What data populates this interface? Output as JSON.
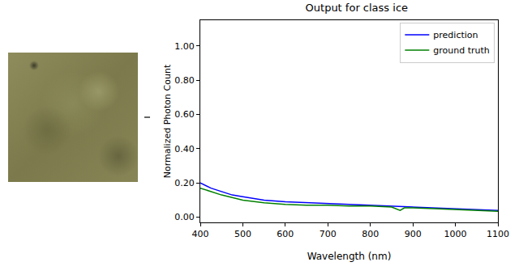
{
  "chart_data": {
    "type": "line",
    "title": "Output for class ice",
    "x_label": "Wavelength (nm)",
    "y_label": "Normalized Photon Count",
    "x": [
      400,
      425,
      450,
      475,
      500,
      550,
      600,
      650,
      700,
      750,
      800,
      850,
      870,
      880,
      900,
      950,
      1000,
      1050,
      1100
    ],
    "series": [
      {
        "name": "prediction",
        "color": "#0000ff",
        "values": [
          0.2,
          0.17,
          0.15,
          0.13,
          0.12,
          0.1,
          0.09,
          0.085,
          0.08,
          0.075,
          0.07,
          0.065,
          0.06,
          0.062,
          0.06,
          0.055,
          0.05,
          0.045,
          0.04
        ]
      },
      {
        "name": "ground truth",
        "color": "#008000",
        "values": [
          0.17,
          0.15,
          0.13,
          0.115,
          0.1,
          0.085,
          0.075,
          0.07,
          0.07,
          0.065,
          0.065,
          0.06,
          0.04,
          0.055,
          0.055,
          0.05,
          0.045,
          0.04,
          0.035
        ]
      }
    ],
    "xlim": [
      400,
      1100
    ],
    "xticks": [
      400,
      500,
      600,
      700,
      800,
      900,
      1000,
      1100
    ],
    "ylim": [
      -0.03,
      1.15
    ],
    "yticks": [
      {
        "value": 0,
        "label": "0.00"
      },
      {
        "value": 0.2,
        "label": "0.20"
      },
      {
        "value": 0.4,
        "label": "0.40"
      },
      {
        "value": 0.6,
        "label": "0.60"
      },
      {
        "value": 0.8,
        "label": "0.80"
      },
      {
        "value": 1.0,
        "label": "1.00"
      }
    ],
    "grid": false,
    "legend": "upper right"
  }
}
